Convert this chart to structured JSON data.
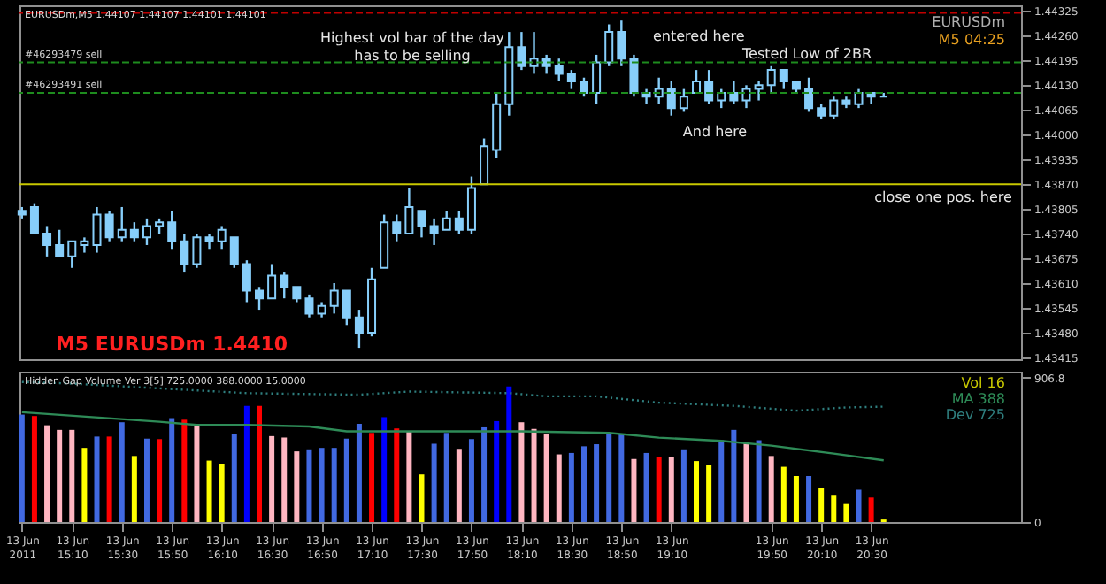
{
  "chart_data": [
    {
      "type": "candlestick",
      "subtitle": "EURUSDm,M5  1.44107 1.44107 1.44101 1.44101",
      "color": "#87cefa",
      "tick_labels": "y",
      "x": [
        "2011-06-13T14:50",
        "2011-06-13T14:55",
        "2011-06-13T15:00",
        "2011-06-13T15:05",
        "2011-06-13T15:10",
        "2011-06-13T15:15",
        "2011-06-13T15:20",
        "2011-06-13T15:25",
        "2011-06-13T15:30",
        "2011-06-13T15:35",
        "2011-06-13T15:40",
        "2011-06-13T15:45",
        "2011-06-13T15:50",
        "2011-06-13T15:55",
        "2011-06-13T16:00",
        "2011-06-13T16:05",
        "2011-06-13T16:10",
        "2011-06-13T16:15",
        "2011-06-13T16:20",
        "2011-06-13T16:25",
        "2011-06-13T16:30",
        "2011-06-13T16:35",
        "2011-06-13T16:40",
        "2011-06-13T16:45",
        "2011-06-13T16:50",
        "2011-06-13T16:55",
        "2011-06-13T17:00",
        "2011-06-13T17:05",
        "2011-06-13T17:10",
        "2011-06-13T17:15",
        "2011-06-13T17:20",
        "2011-06-13T17:25",
        "2011-06-13T17:30",
        "2011-06-13T17:35",
        "2011-06-13T17:40",
        "2011-06-13T17:45",
        "2011-06-13T17:50",
        "2011-06-13T17:55",
        "2011-06-13T18:00",
        "2011-06-13T18:05",
        "2011-06-13T18:10",
        "2011-06-13T18:15",
        "2011-06-13T18:20",
        "2011-06-13T18:25",
        "2011-06-13T18:30",
        "2011-06-13T18:35",
        "2011-06-13T18:40",
        "2011-06-13T18:45",
        "2011-06-13T18:50",
        "2011-06-13T18:55",
        "2011-06-13T19:00",
        "2011-06-13T19:05",
        "2011-06-13T19:10",
        "2011-06-13T19:15",
        "2011-06-13T19:20",
        "2011-06-13T19:25",
        "2011-06-13T19:30",
        "2011-06-13T19:35",
        "2011-06-13T19:40",
        "2011-06-13T19:45",
        "2011-06-13T19:50",
        "2011-06-13T19:55",
        "2011-06-13T20:00",
        "2011-06-13T20:05",
        "2011-06-13T20:10",
        "2011-06-13T20:15",
        "2011-06-13T20:20",
        "2011-06-13T20:25",
        "2011-06-13T20:30",
        "2011-06-13T20:35"
      ],
      "ohlc": [
        [
          1.438,
          1.4381,
          1.4378,
          1.4379
        ],
        [
          1.4381,
          1.4382,
          1.4374,
          1.4374
        ],
        [
          1.4374,
          1.4376,
          1.4368,
          1.4371
        ],
        [
          1.4371,
          1.4375,
          1.4368,
          1.4368
        ],
        [
          1.4368,
          1.4372,
          1.4365,
          1.4372
        ],
        [
          1.4371,
          1.4373,
          1.4369,
          1.4372
        ],
        [
          1.4371,
          1.4381,
          1.4369,
          1.4379
        ],
        [
          1.4379,
          1.438,
          1.4372,
          1.4373
        ],
        [
          1.4373,
          1.4381,
          1.4372,
          1.4375
        ],
        [
          1.4375,
          1.4377,
          1.4372,
          1.4373
        ],
        [
          1.4373,
          1.4378,
          1.4371,
          1.4376
        ],
        [
          1.4376,
          1.4378,
          1.4374,
          1.4377
        ],
        [
          1.4377,
          1.438,
          1.437,
          1.4372
        ],
        [
          1.4372,
          1.4374,
          1.4364,
          1.4366
        ],
        [
          1.4366,
          1.4374,
          1.4365,
          1.4373
        ],
        [
          1.4373,
          1.4374,
          1.437,
          1.4372
        ],
        [
          1.4372,
          1.4376,
          1.437,
          1.4375
        ],
        [
          1.4373,
          1.4373,
          1.4365,
          1.4366
        ],
        [
          1.4366,
          1.4367,
          1.4356,
          1.4359
        ],
        [
          1.4359,
          1.436,
          1.4354,
          1.4357
        ],
        [
          1.4357,
          1.4366,
          1.4357,
          1.4363
        ],
        [
          1.4363,
          1.4364,
          1.4357,
          1.436
        ],
        [
          1.436,
          1.436,
          1.4356,
          1.4357
        ],
        [
          1.4357,
          1.4358,
          1.4352,
          1.4353
        ],
        [
          1.4353,
          1.4356,
          1.4352,
          1.4355
        ],
        [
          1.4355,
          1.4361,
          1.4353,
          1.4359
        ],
        [
          1.4359,
          1.4359,
          1.435,
          1.4352
        ],
        [
          1.4352,
          1.4354,
          1.4344,
          1.4348
        ],
        [
          1.4348,
          1.4365,
          1.4347,
          1.4362
        ],
        [
          1.4365,
          1.4379,
          1.4365,
          1.4377
        ],
        [
          1.4377,
          1.4379,
          1.4372,
          1.4374
        ],
        [
          1.4374,
          1.4386,
          1.4374,
          1.4381
        ],
        [
          1.438,
          1.438,
          1.4373,
          1.4376
        ],
        [
          1.4376,
          1.4378,
          1.4371,
          1.4374
        ],
        [
          1.4375,
          1.438,
          1.4375,
          1.4378
        ],
        [
          1.4378,
          1.438,
          1.4374,
          1.4375
        ],
        [
          1.4375,
          1.4389,
          1.4374,
          1.4386
        ],
        [
          1.4387,
          1.4399,
          1.4387,
          1.4397
        ],
        [
          1.4396,
          1.4411,
          1.4394,
          1.4408
        ],
        [
          1.4408,
          1.4427,
          1.4405,
          1.4423
        ],
        [
          1.4423,
          1.4427,
          1.4417,
          1.4418
        ],
        [
          1.4418,
          1.4427,
          1.4416,
          1.442
        ],
        [
          1.442,
          1.4421,
          1.4416,
          1.4418
        ],
        [
          1.4418,
          1.442,
          1.4414,
          1.4416
        ],
        [
          1.4416,
          1.4417,
          1.4412,
          1.4414
        ],
        [
          1.4414,
          1.4415,
          1.441,
          1.4411
        ],
        [
          1.4411,
          1.4421,
          1.4408,
          1.4419
        ],
        [
          1.4419,
          1.4429,
          1.4418,
          1.4427
        ],
        [
          1.4427,
          1.443,
          1.4418,
          1.442
        ],
        [
          1.442,
          1.4421,
          1.441,
          1.4411
        ],
        [
          1.4411,
          1.4412,
          1.4408,
          1.441
        ],
        [
          1.441,
          1.4415,
          1.4408,
          1.4412
        ],
        [
          1.4412,
          1.4414,
          1.4405,
          1.4407
        ],
        [
          1.4407,
          1.4412,
          1.4406,
          1.441
        ],
        [
          1.4411,
          1.4417,
          1.4411,
          1.4414
        ],
        [
          1.4414,
          1.4417,
          1.4408,
          1.4409
        ],
        [
          1.4409,
          1.4412,
          1.4407,
          1.4411
        ],
        [
          1.4411,
          1.4414,
          1.4408,
          1.4409
        ],
        [
          1.4409,
          1.4413,
          1.4407,
          1.4412
        ],
        [
          1.4412,
          1.4414,
          1.4409,
          1.4413
        ],
        [
          1.4413,
          1.4418,
          1.4411,
          1.4417
        ],
        [
          1.4417,
          1.4417,
          1.4412,
          1.4414
        ],
        [
          1.4414,
          1.4414,
          1.4411,
          1.4412
        ],
        [
          1.4412,
          1.4415,
          1.4406,
          1.4407
        ],
        [
          1.4407,
          1.4408,
          1.4404,
          1.4405
        ],
        [
          1.4405,
          1.441,
          1.4404,
          1.4409
        ],
        [
          1.4409,
          1.441,
          1.4407,
          1.4408
        ],
        [
          1.4408,
          1.4412,
          1.4407,
          1.4411
        ],
        [
          1.4411,
          1.4411,
          1.4408,
          1.441
        ],
        [
          1.441,
          1.4411,
          1.441,
          1.441
        ]
      ],
      "xlim": [
        "2011-06-13T14:49",
        "2011-06-13T21:30"
      ],
      "ylim": [
        1.4341,
        1.4434
      ],
      "yticks": [
        1.44325,
        {
          "value": 1.4426,
          "label": "1.44260"
        },
        1.44195,
        {
          "value": 1.4413,
          "label": "1.44130"
        },
        1.44065,
        {
          "value": 1.44,
          "label": "1.44000"
        },
        1.43935,
        {
          "value": 1.4387,
          "label": "1.43870"
        },
        1.43805,
        {
          "value": 1.4374,
          "label": "1.43740"
        },
        1.43675,
        {
          "value": 1.4361,
          "label": "1.43610"
        },
        1.43545,
        {
          "value": 1.4348,
          "label": "1.43480"
        },
        1.43415
      ],
      "ref_lines": [
        {
          "axis": "y",
          "value": 1.4432,
          "color": "#c00000",
          "line_style": "dashed"
        },
        {
          "axis": "y",
          "value": 1.4419,
          "label": "#46293479 sell",
          "color": "#1e8c1e",
          "line_style": "dashed"
        },
        {
          "axis": "y",
          "value": 1.4411,
          "label": "#46293491 sell",
          "color": "#1e8c1e",
          "line_style": "dashed"
        },
        {
          "axis": "y",
          "value": 1.4387,
          "color": "#c8c800",
          "line_style": "solid"
        }
      ],
      "annotations": [
        "Highest vol bar of the day\nhas to be selling",
        "entered here",
        "And here",
        "Tested Low of 2BR",
        "close one pos. here",
        "M5 EURUSDm 1.4410",
        "EURUSDm",
        "M5  04:25"
      ]
    },
    {
      "type": "bar",
      "subtitle": "Hidden Gap Volume Ver 3[5] 725.0000 388.0000 15.0000",
      "x": [
        "2011-06-13T14:50",
        "2011-06-13T14:55",
        "2011-06-13T15:00",
        "2011-06-13T15:05",
        "2011-06-13T15:10",
        "2011-06-13T15:15",
        "2011-06-13T15:20",
        "2011-06-13T15:25",
        "2011-06-13T15:30",
        "2011-06-13T15:35",
        "2011-06-13T15:40",
        "2011-06-13T15:45",
        "2011-06-13T15:50",
        "2011-06-13T15:55",
        "2011-06-13T16:00",
        "2011-06-13T16:05",
        "2011-06-13T16:10",
        "2011-06-13T16:15",
        "2011-06-13T16:20",
        "2011-06-13T16:25",
        "2011-06-13T16:30",
        "2011-06-13T16:35",
        "2011-06-13T16:40",
        "2011-06-13T16:45",
        "2011-06-13T16:50",
        "2011-06-13T16:55",
        "2011-06-13T17:00",
        "2011-06-13T17:05",
        "2011-06-13T17:10",
        "2011-06-13T17:15",
        "2011-06-13T17:20",
        "2011-06-13T17:25",
        "2011-06-13T17:30",
        "2011-06-13T17:35",
        "2011-06-13T17:40",
        "2011-06-13T17:45",
        "2011-06-13T17:50",
        "2011-06-13T17:55",
        "2011-06-13T18:00",
        "2011-06-13T18:05",
        "2011-06-13T18:10",
        "2011-06-13T18:15",
        "2011-06-13T18:20",
        "2011-06-13T18:25",
        "2011-06-13T18:30",
        "2011-06-13T18:35",
        "2011-06-13T18:40",
        "2011-06-13T18:45",
        "2011-06-13T18:50",
        "2011-06-13T18:55",
        "2011-06-13T19:00",
        "2011-06-13T19:05",
        "2011-06-13T19:10",
        "2011-06-13T19:15",
        "2011-06-13T19:20",
        "2011-06-13T19:25",
        "2011-06-13T19:30",
        "2011-06-13T19:35",
        "2011-06-13T19:40",
        "2011-06-13T19:45",
        "2011-06-13T19:50",
        "2011-06-13T19:55",
        "2011-06-13T20:00",
        "2011-06-13T20:05",
        "2011-06-13T20:10",
        "2011-06-13T20:15",
        "2011-06-13T20:20",
        "2011-06-13T20:25",
        "2011-06-13T20:30",
        "2011-06-13T20:35"
      ],
      "series": [
        {
          "type": "bar",
          "values": [
            675,
            666,
            608,
            579,
            579,
            466,
            537,
            537,
            627,
            415,
            524,
            521,
            653,
            643,
            601,
            386,
            367,
            556,
            730,
            730,
            540,
            531,
            444,
            457,
            466,
            466,
            524,
            617,
            560,
            659,
            588,
            569,
            299,
            492,
            560,
            460,
            521,
            595,
            634,
            852,
            627,
            585,
            553,
            425,
            434,
            476,
            489,
            553,
            553,
            396,
            434,
            408,
            408,
            457,
            383,
            360,
            514,
            579,
            499,
            514,
            415,
            347,
            289,
            289,
            215,
            171,
            113,
            203,
            154,
            16
          ],
          "colors": [
            "#4169e1",
            "#ff0000",
            "#ffb6c1",
            "#ffb6c1",
            "#ffb6c1",
            "#ffff00",
            "#4169e1",
            "#ff0000",
            "#4169e1",
            "#ffff00",
            "#4169e1",
            "#ff0000",
            "#4169e1",
            "#ff0000",
            "#ffb6c1",
            "#ffff00",
            "#ffff00",
            "#4169e1",
            "#0000ff",
            "#ff0000",
            "#ffb6c1",
            "#ffb6c1",
            "#ffb6c1",
            "#4169e1",
            "#4169e1",
            "#4169e1",
            "#4169e1",
            "#4169e1",
            "#ff0000",
            "#0000ff",
            "#ff0000",
            "#ffb6c1",
            "#ffff00",
            "#4169e1",
            "#4169e1",
            "#ffb6c1",
            "#4169e1",
            "#4169e1",
            "#0000ff",
            "#0000ff",
            "#ffb6c1",
            "#ffb6c1",
            "#ffb6c1",
            "#ffb6c1",
            "#4169e1",
            "#4169e1",
            "#4169e1",
            "#4169e1",
            "#4169e1",
            "#ffb6c1",
            "#4169e1",
            "#ff0000",
            "#ffb6c1",
            "#4169e1",
            "#ffff00",
            "#ffff00",
            "#4169e1",
            "#4169e1",
            "#ffb6c1",
            "#4169e1",
            "#ffb6c1",
            "#ffff00",
            "#ffff00",
            "#4169e1",
            "#ffff00",
            "#ffff00",
            "#ffff00",
            "#4169e1",
            "#ff0000",
            "#ffff00"
          ]
        },
        {
          "type": "line",
          "color": "#2e8b57",
          "line_style": "solid",
          "x": [
            "2011-06-13T14:50",
            "2011-06-13T15:45",
            "2011-06-13T16:00",
            "2011-06-13T16:20",
            "2011-06-13T16:45",
            "2011-06-13T17:00",
            "2011-06-13T17:35",
            "2011-06-13T18:10",
            "2011-06-13T18:45",
            "2011-06-13T19:05",
            "2011-06-13T19:30",
            "2011-06-13T19:50",
            "2011-06-13T20:15",
            "2011-06-13T20:35"
          ],
          "values": [
            690,
            630,
            610,
            610,
            600,
            570,
            570,
            570,
            560,
            530,
            510,
            480,
            430,
            388
          ]
        },
        {
          "type": "line",
          "color": "#2f7f7f",
          "line_style": "dotted",
          "x": [
            "2011-06-13T14:50",
            "2011-06-13T15:10",
            "2011-06-13T15:45",
            "2011-06-13T16:20",
            "2011-06-13T17:05",
            "2011-06-13T17:25",
            "2011-06-13T18:05",
            "2011-06-13T18:20",
            "2011-06-13T18:40",
            "2011-06-13T19:05",
            "2011-06-13T19:35",
            "2011-06-13T20:00",
            "2011-06-13T20:20",
            "2011-06-13T20:35"
          ],
          "values": [
            880,
            870,
            840,
            810,
            800,
            820,
            810,
            790,
            790,
            750,
            730,
            700,
            720,
            725
          ]
        }
      ],
      "xlim": [
        "2011-06-13T14:49",
        "2011-06-13T21:30"
      ],
      "xticks": [
        {
          "value": "2011-06-13T14:50",
          "label": "13 Jun 2011"
        },
        {
          "value": "2011-06-13T15:10",
          "label": "13 Jun 15:10"
        },
        {
          "value": "2011-06-13T15:30",
          "label": "13 Jun 15:30"
        },
        {
          "value": "2011-06-13T15:50",
          "label": "13 Jun 15:50"
        },
        {
          "value": "2011-06-13T16:10",
          "label": "13 Jun 16:10"
        },
        {
          "value": "2011-06-13T16:30",
          "label": "13 Jun 16:30"
        },
        {
          "value": "2011-06-13T16:50",
          "label": "13 Jun 16:50"
        },
        {
          "value": "2011-06-13T17:10",
          "label": "13 Jun 17:10"
        },
        {
          "value": "2011-06-13T17:30",
          "label": "13 Jun 17:30"
        },
        {
          "value": "2011-06-13T17:50",
          "label": "13 Jun 17:50"
        },
        {
          "value": "2011-06-13T18:10",
          "label": "13 Jun 18:10"
        },
        {
          "value": "2011-06-13T18:30",
          "label": "13 Jun 18:30"
        },
        {
          "value": "2011-06-13T18:50",
          "label": "13 Jun 18:50"
        },
        {
          "value": "2011-06-13T19:10",
          "label": "13 Jun 19:10"
        },
        {
          "value": "2011-06-13T19:50",
          "label": "13 Jun 19:50"
        },
        {
          "value": "2011-06-13T20:10",
          "label": "13 Jun 20:10"
        },
        {
          "value": "2011-06-13T20:30",
          "label": "13 Jun 20:30"
        }
      ],
      "ylim": [
        0,
        945
      ],
      "yticks": [
        0,
        906.8
      ],
      "annotations": [
        "Vol  16",
        "MA  388",
        "Dev  725"
      ]
    }
  ]
}
